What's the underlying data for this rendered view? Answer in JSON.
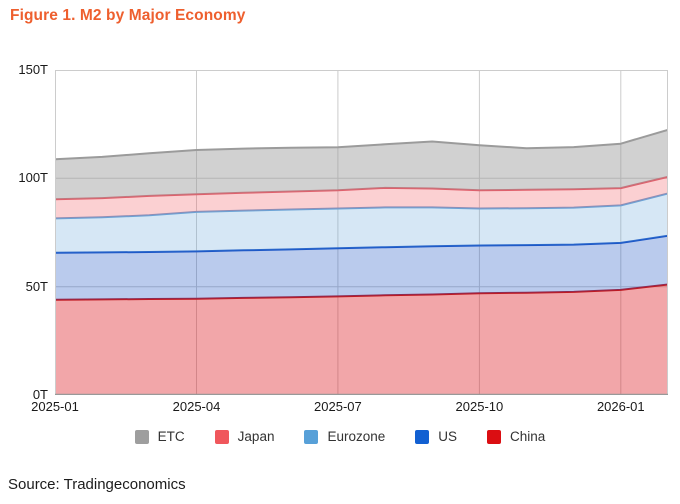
{
  "header": {
    "title": "Figure 1. M2 by Major Economy",
    "title_color": "#ee5f2e"
  },
  "footer": {
    "source": "Source: Tradingeconomics"
  },
  "chart_data": {
    "type": "area",
    "stacked": true,
    "title": "Figure 1. M2 by Major Economy",
    "xlabel": "",
    "ylabel": "",
    "ylim": [
      0,
      150
    ],
    "grid": true,
    "legend_position": "bottom",
    "units": "trillions",
    "x": [
      "2025-01",
      "2025-02",
      "2025-03",
      "2025-04",
      "2025-05",
      "2025-06",
      "2025-07",
      "2025-08",
      "2025-09",
      "2025-10",
      "2025-11",
      "2025-12",
      "2026-01",
      "2026-02"
    ],
    "x_ticks": [
      {
        "index": 0,
        "label": "2025-01"
      },
      {
        "index": 3,
        "label": "2025-04"
      },
      {
        "index": 6,
        "label": "2025-07"
      },
      {
        "index": 9,
        "label": "2025-10"
      },
      {
        "index": 12,
        "label": "2026-01"
      }
    ],
    "y_ticks": [
      {
        "value": 0,
        "label": "0T"
      },
      {
        "value": 50,
        "label": "50T"
      },
      {
        "value": 100,
        "label": "100T"
      },
      {
        "value": 150,
        "label": "150T"
      }
    ],
    "series": [
      {
        "name": "China",
        "line_color": "#c01a22",
        "fill_color": "rgba(220,20,30,0.38)",
        "legend_color": "#db0e12",
        "values": [
          44.0,
          44.1,
          44.3,
          44.4,
          44.8,
          45.1,
          45.5,
          46.0,
          46.4,
          47.0,
          47.2,
          47.6,
          48.5,
          51.0
        ]
      },
      {
        "name": "US",
        "line_color": "#1c57c7",
        "fill_color": "rgba(27,84,196,0.30)",
        "legend_color": "#1260d2",
        "values": [
          21.7,
          21.7,
          21.7,
          21.9,
          22.0,
          22.1,
          22.2,
          22.2,
          22.3,
          22.0,
          22.0,
          21.8,
          21.7,
          22.5
        ]
      },
      {
        "name": "Eurozone",
        "line_color": "#6ba3d6",
        "fill_color": "rgba(91,161,216,0.25)",
        "legend_color": "#57a0d8",
        "values": [
          15.8,
          16.2,
          17.0,
          18.2,
          18.3,
          18.4,
          18.4,
          18.4,
          17.9,
          17.1,
          17.0,
          17.1,
          17.3,
          19.5
        ]
      },
      {
        "name": "Japan",
        "line_color": "#e0606c",
        "fill_color": "rgba(239,86,94,0.28)",
        "legend_color": "#f0575c",
        "values": [
          8.8,
          8.9,
          8.9,
          8.2,
          8.2,
          8.3,
          8.4,
          9.0,
          8.7,
          8.4,
          8.5,
          8.5,
          8.0,
          7.7
        ]
      },
      {
        "name": "ETC",
        "line_color": "#9b9b9b",
        "fill_color": "rgba(154,154,154,0.45)",
        "legend_color": "#9e9e9e",
        "values": [
          18.5,
          19.0,
          19.7,
          20.4,
          20.4,
          20.2,
          19.8,
          20.1,
          21.7,
          20.8,
          19.2,
          19.4,
          20.5,
          21.7
        ]
      }
    ],
    "legend_order": [
      "ETC",
      "Japan",
      "Eurozone",
      "US",
      "China"
    ],
    "grid_color": "#cccccc",
    "axis_color": "#999999"
  }
}
